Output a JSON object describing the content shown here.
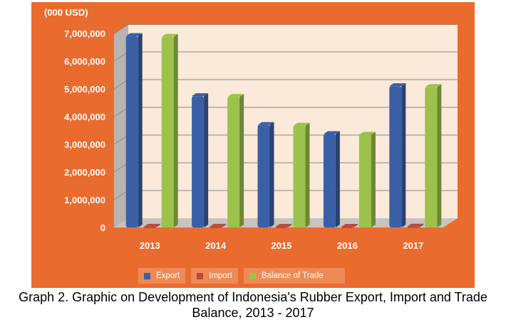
{
  "chart_data": {
    "type": "bar",
    "unit_label": "(000 USD)",
    "categories": [
      "2013",
      "2014",
      "2015",
      "2016",
      "2017"
    ],
    "series": [
      {
        "name": "Export",
        "values": [
          6906951,
          4741794,
          3699140,
          3370322,
          5099886
        ],
        "color": "#3a5fa6"
      },
      {
        "name": "Import",
        "values": [
          28000,
          30000,
          27000,
          25000,
          32000
        ],
        "color": "#b84a3f"
      },
      {
        "name": "Balance of Trade",
        "values": [
          6878951,
          4711794,
          3672140,
          3345322,
          5067886
        ],
        "color": "#9bc24b"
      }
    ],
    "yticks": [
      "0",
      "1,000,000",
      "2,000,000",
      "3,000,000",
      "4,000,000",
      "5,000,000",
      "6,000,000",
      "7,000,000"
    ],
    "ylim": [
      0,
      7000000
    ],
    "grid": true,
    "legend_position": "bottom"
  },
  "caption": {
    "line1": "Graph 2. Graphic on Development of Indonesia's Rubber Export, Import and Trade",
    "line2": "Balance, 2013 - 2017"
  }
}
